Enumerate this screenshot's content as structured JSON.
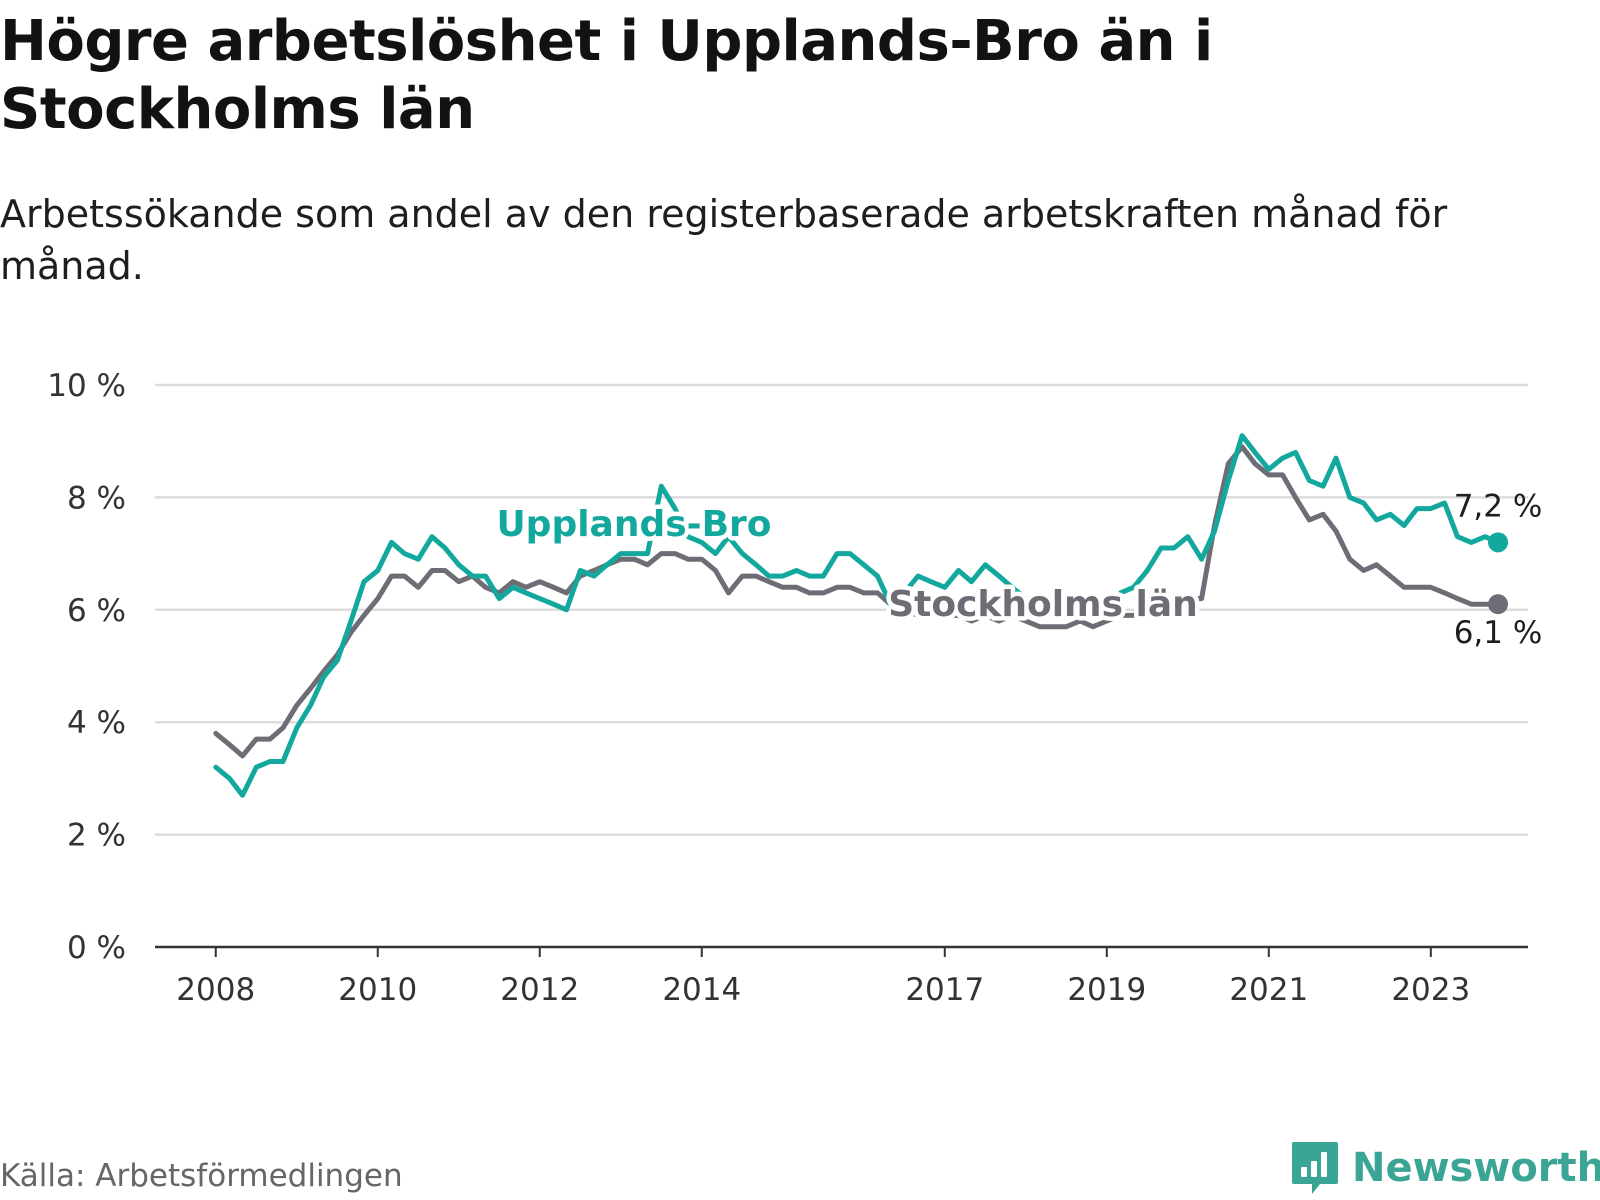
{
  "title": "Högre arbetslöshet i Upplands-Bro än i Stockholms län",
  "subtitle": "Arbetssökande som andel av den registerbaserade arbetskraften månad för månad.",
  "source": "Källa: Arbetsförmedlingen",
  "brand": "Newsworthy",
  "colors": {
    "upplands": "#13a89e",
    "stockholm": "#6e6c75",
    "grid": "#dcdcdc",
    "axis": "#333333",
    "brand": "#3aa595"
  },
  "icons": {
    "brand_logo": "bar-chart-speech-bubble-icon"
  },
  "chart_data": {
    "type": "line",
    "x_unit": "year",
    "x_ticks": [
      2008,
      2010,
      2012,
      2014,
      2017,
      2019,
      2021,
      2023
    ],
    "x_tick_labels": [
      "2008",
      "2010",
      "2012",
      "2014",
      "2017",
      "2019",
      "2021",
      "2023"
    ],
    "xlim": [
      2007.25,
      2024.2
    ],
    "ylim": [
      0,
      10
    ],
    "y_ticks": [
      0,
      2,
      4,
      6,
      8,
      10
    ],
    "y_tick_labels": [
      "0 %",
      "2 %",
      "4 %",
      "6 %",
      "8 %",
      "10 %"
    ],
    "grid": true,
    "series": [
      {
        "key": "stockholm",
        "name": "Stockholms län",
        "end_label": "6,1 %",
        "points": [
          [
            2008.0,
            3.8
          ],
          [
            2008.17,
            3.6
          ],
          [
            2008.33,
            3.4
          ],
          [
            2008.5,
            3.7
          ],
          [
            2008.67,
            3.7
          ],
          [
            2008.83,
            3.9
          ],
          [
            2009.0,
            4.3
          ],
          [
            2009.17,
            4.6
          ],
          [
            2009.33,
            4.9
          ],
          [
            2009.5,
            5.2
          ],
          [
            2009.67,
            5.6
          ],
          [
            2009.83,
            5.9
          ],
          [
            2010.0,
            6.2
          ],
          [
            2010.17,
            6.6
          ],
          [
            2010.33,
            6.6
          ],
          [
            2010.5,
            6.4
          ],
          [
            2010.67,
            6.7
          ],
          [
            2010.83,
            6.7
          ],
          [
            2011.0,
            6.5
          ],
          [
            2011.17,
            6.6
          ],
          [
            2011.33,
            6.4
          ],
          [
            2011.5,
            6.3
          ],
          [
            2011.67,
            6.5
          ],
          [
            2011.83,
            6.4
          ],
          [
            2012.0,
            6.5
          ],
          [
            2012.17,
            6.4
          ],
          [
            2012.33,
            6.3
          ],
          [
            2012.5,
            6.6
          ],
          [
            2012.67,
            6.7
          ],
          [
            2012.83,
            6.8
          ],
          [
            2013.0,
            6.9
          ],
          [
            2013.17,
            6.9
          ],
          [
            2013.33,
            6.8
          ],
          [
            2013.5,
            7.0
          ],
          [
            2013.67,
            7.0
          ],
          [
            2013.83,
            6.9
          ],
          [
            2014.0,
            6.9
          ],
          [
            2014.17,
            6.7
          ],
          [
            2014.33,
            6.3
          ],
          [
            2014.5,
            6.6
          ],
          [
            2014.67,
            6.6
          ],
          [
            2014.83,
            6.5
          ],
          [
            2015.0,
            6.4
          ],
          [
            2015.17,
            6.4
          ],
          [
            2015.33,
            6.3
          ],
          [
            2015.5,
            6.3
          ],
          [
            2015.67,
            6.4
          ],
          [
            2015.83,
            6.4
          ],
          [
            2016.0,
            6.3
          ],
          [
            2016.17,
            6.3
          ],
          [
            2016.33,
            6.1
          ],
          [
            2016.5,
            6.0
          ],
          [
            2016.67,
            5.9
          ],
          [
            2016.83,
            5.9
          ],
          [
            2017.0,
            5.9
          ],
          [
            2017.17,
            5.9
          ],
          [
            2017.33,
            5.8
          ],
          [
            2017.5,
            5.9
          ],
          [
            2017.67,
            5.8
          ],
          [
            2017.83,
            5.9
          ],
          [
            2018.0,
            5.8
          ],
          [
            2018.17,
            5.7
          ],
          [
            2018.33,
            5.7
          ],
          [
            2018.5,
            5.7
          ],
          [
            2018.67,
            5.8
          ],
          [
            2018.83,
            5.7
          ],
          [
            2019.0,
            5.8
          ],
          [
            2019.17,
            5.9
          ],
          [
            2019.33,
            5.9
          ],
          [
            2019.5,
            6.0
          ],
          [
            2019.67,
            6.1
          ],
          [
            2019.83,
            6.2
          ],
          [
            2020.0,
            6.2
          ],
          [
            2020.17,
            6.2
          ],
          [
            2020.33,
            7.5
          ],
          [
            2020.5,
            8.6
          ],
          [
            2020.67,
            8.9
          ],
          [
            2020.83,
            8.6
          ],
          [
            2021.0,
            8.4
          ],
          [
            2021.17,
            8.4
          ],
          [
            2021.33,
            8.0
          ],
          [
            2021.5,
            7.6
          ],
          [
            2021.67,
            7.7
          ],
          [
            2021.83,
            7.4
          ],
          [
            2022.0,
            6.9
          ],
          [
            2022.17,
            6.7
          ],
          [
            2022.33,
            6.8
          ],
          [
            2022.5,
            6.6
          ],
          [
            2022.67,
            6.4
          ],
          [
            2022.83,
            6.4
          ],
          [
            2023.0,
            6.4
          ],
          [
            2023.17,
            6.3
          ],
          [
            2023.33,
            6.2
          ],
          [
            2023.5,
            6.1
          ],
          [
            2023.67,
            6.1
          ],
          [
            2023.83,
            6.1
          ]
        ]
      },
      {
        "key": "upplands",
        "name": "Upplands-Bro",
        "end_label": "7,2 %",
        "points": [
          [
            2008.0,
            3.2
          ],
          [
            2008.17,
            3.0
          ],
          [
            2008.33,
            2.7
          ],
          [
            2008.5,
            3.2
          ],
          [
            2008.67,
            3.3
          ],
          [
            2008.83,
            3.3
          ],
          [
            2009.0,
            3.9
          ],
          [
            2009.17,
            4.3
          ],
          [
            2009.33,
            4.8
          ],
          [
            2009.5,
            5.1
          ],
          [
            2009.67,
            5.8
          ],
          [
            2009.83,
            6.5
          ],
          [
            2010.0,
            6.7
          ],
          [
            2010.17,
            7.2
          ],
          [
            2010.33,
            7.0
          ],
          [
            2010.5,
            6.9
          ],
          [
            2010.67,
            7.3
          ],
          [
            2010.83,
            7.1
          ],
          [
            2011.0,
            6.8
          ],
          [
            2011.17,
            6.6
          ],
          [
            2011.33,
            6.6
          ],
          [
            2011.5,
            6.2
          ],
          [
            2011.67,
            6.4
          ],
          [
            2011.83,
            6.3
          ],
          [
            2012.0,
            6.2
          ],
          [
            2012.17,
            6.1
          ],
          [
            2012.33,
            6.0
          ],
          [
            2012.5,
            6.7
          ],
          [
            2012.67,
            6.6
          ],
          [
            2012.83,
            6.8
          ],
          [
            2013.0,
            7.0
          ],
          [
            2013.17,
            7.0
          ],
          [
            2013.33,
            7.0
          ],
          [
            2013.5,
            8.2
          ],
          [
            2013.67,
            7.8
          ],
          [
            2013.83,
            7.3
          ],
          [
            2014.0,
            7.2
          ],
          [
            2014.17,
            7.0
          ],
          [
            2014.33,
            7.3
          ],
          [
            2014.5,
            7.0
          ],
          [
            2014.67,
            6.8
          ],
          [
            2014.83,
            6.6
          ],
          [
            2015.0,
            6.6
          ],
          [
            2015.17,
            6.7
          ],
          [
            2015.33,
            6.6
          ],
          [
            2015.5,
            6.6
          ],
          [
            2015.67,
            7.0
          ],
          [
            2015.83,
            7.0
          ],
          [
            2016.0,
            6.8
          ],
          [
            2016.17,
            6.6
          ],
          [
            2016.33,
            6.1
          ],
          [
            2016.5,
            6.3
          ],
          [
            2016.67,
            6.6
          ],
          [
            2016.83,
            6.5
          ],
          [
            2017.0,
            6.4
          ],
          [
            2017.17,
            6.7
          ],
          [
            2017.33,
            6.5
          ],
          [
            2017.5,
            6.8
          ],
          [
            2017.67,
            6.6
          ],
          [
            2017.83,
            6.4
          ],
          [
            2018.0,
            6.2
          ],
          [
            2018.17,
            6.1
          ],
          [
            2018.33,
            6.0
          ],
          [
            2018.5,
            6.1
          ],
          [
            2018.67,
            6.1
          ],
          [
            2018.83,
            6.0
          ],
          [
            2019.0,
            6.0
          ],
          [
            2019.17,
            6.3
          ],
          [
            2019.33,
            6.4
          ],
          [
            2019.5,
            6.7
          ],
          [
            2019.67,
            7.1
          ],
          [
            2019.83,
            7.1
          ],
          [
            2020.0,
            7.3
          ],
          [
            2020.17,
            6.9
          ],
          [
            2020.33,
            7.4
          ],
          [
            2020.5,
            8.3
          ],
          [
            2020.67,
            9.1
          ],
          [
            2020.83,
            8.8
          ],
          [
            2021.0,
            8.5
          ],
          [
            2021.17,
            8.7
          ],
          [
            2021.33,
            8.8
          ],
          [
            2021.5,
            8.3
          ],
          [
            2021.67,
            8.2
          ],
          [
            2021.83,
            8.7
          ],
          [
            2022.0,
            8.0
          ],
          [
            2022.17,
            7.9
          ],
          [
            2022.33,
            7.6
          ],
          [
            2022.5,
            7.7
          ],
          [
            2022.67,
            7.5
          ],
          [
            2022.83,
            7.8
          ],
          [
            2023.0,
            7.8
          ],
          [
            2023.17,
            7.9
          ],
          [
            2023.33,
            7.3
          ],
          [
            2023.5,
            7.2
          ],
          [
            2023.67,
            7.3
          ],
          [
            2023.83,
            7.2
          ]
        ]
      }
    ]
  }
}
